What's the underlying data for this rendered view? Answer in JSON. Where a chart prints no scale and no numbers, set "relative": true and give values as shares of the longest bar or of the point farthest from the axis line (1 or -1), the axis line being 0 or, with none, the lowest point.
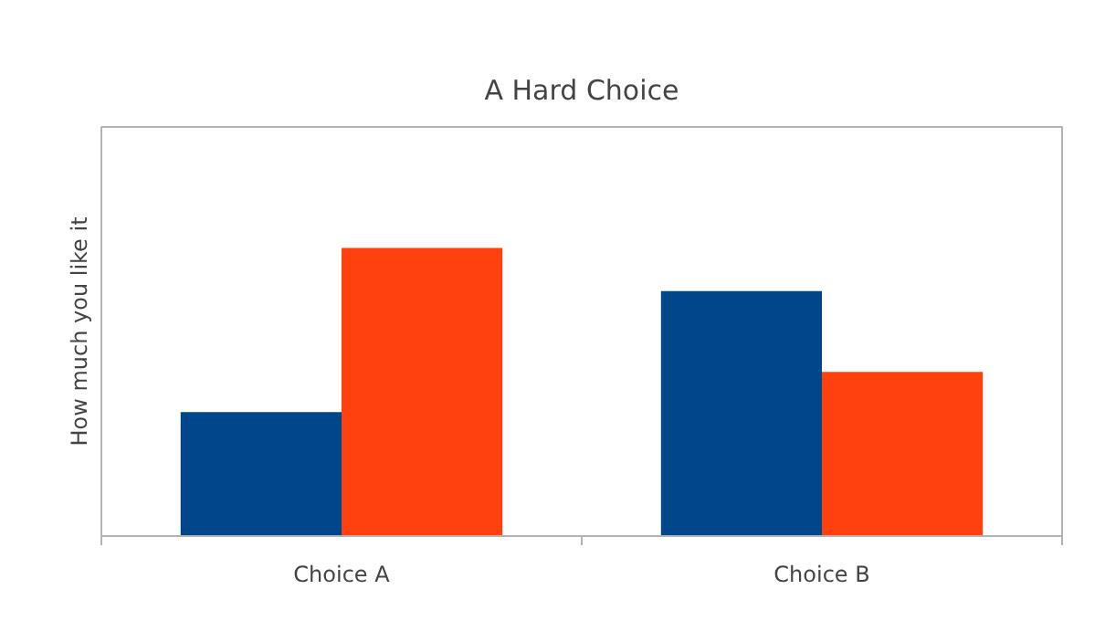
{
  "chart_data": {
    "type": "bar",
    "title": "A Hard Choice",
    "ylabel": "How much you like it",
    "categories": [
      "Choice A",
      "Choice B"
    ],
    "relative": true,
    "grid": false,
    "series": [
      {
        "color": "#00468b",
        "values": [
          0.43,
          0.85
        ]
      },
      {
        "color": "#ff4110",
        "values": [
          1,
          0.57
        ]
      }
    ]
  }
}
